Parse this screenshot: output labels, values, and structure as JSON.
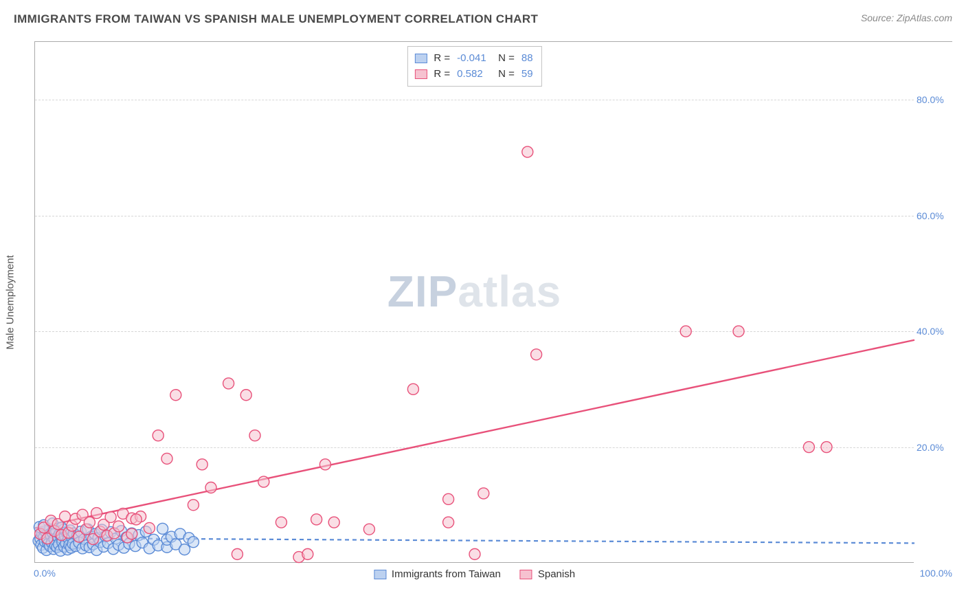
{
  "header": {
    "title": "IMMIGRANTS FROM TAIWAN VS SPANISH MALE UNEMPLOYMENT CORRELATION CHART",
    "source_label": "Source: ZipAtlas.com"
  },
  "watermark": {
    "zip": "ZIP",
    "atlas": "atlas"
  },
  "chart": {
    "type": "scatter",
    "y_axis_title": "Male Unemployment",
    "xlim": [
      0,
      100
    ],
    "ylim": [
      0,
      90
    ],
    "x_ticks": {
      "min_label": "0.0%",
      "max_label": "100.0%"
    },
    "y_ticks": [
      {
        "value": 20,
        "label": "20.0%"
      },
      {
        "value": 40,
        "label": "40.0%"
      },
      {
        "value": 60,
        "label": "60.0%"
      },
      {
        "value": 80,
        "label": "80.0%"
      }
    ],
    "grid_color": "#d6d6d6",
    "axis_color": "#aaaaaa",
    "background_color": "#ffffff",
    "tick_label_color": "#5b8bd6",
    "tick_label_fontsize": 14,
    "axis_title_fontsize": 15,
    "marker_radius": 8,
    "marker_stroke_width": 1.4,
    "series": [
      {
        "key": "taiwan",
        "label": "Immigrants from Taiwan",
        "fill": "#bcd1f0",
        "stroke": "#5b8bd6",
        "fill_opacity": 0.55,
        "R": "-0.041",
        "N": "88",
        "trend": {
          "x1": 0,
          "y1": 4.3,
          "x2": 100,
          "y2": 3.4,
          "stroke": "#5b8bd6",
          "width": 2.2,
          "dash": "6,5"
        },
        "points": [
          [
            0.4,
            3.8
          ],
          [
            0.6,
            4.2
          ],
          [
            0.7,
            3.1
          ],
          [
            0.8,
            5.1
          ],
          [
            0.9,
            2.6
          ],
          [
            1.0,
            4.4
          ],
          [
            1.1,
            3.7
          ],
          [
            1.2,
            5.4
          ],
          [
            1.3,
            2.2
          ],
          [
            1.4,
            4.0
          ],
          [
            1.5,
            3.3
          ],
          [
            1.6,
            5.8
          ],
          [
            1.7,
            2.9
          ],
          [
            1.8,
            4.7
          ],
          [
            1.9,
            3.5
          ],
          [
            2.0,
            5.2
          ],
          [
            2.1,
            2.4
          ],
          [
            2.2,
            4.1
          ],
          [
            2.3,
            3.0
          ],
          [
            2.4,
            5.5
          ],
          [
            2.5,
            2.7
          ],
          [
            2.6,
            4.5
          ],
          [
            2.7,
            3.2
          ],
          [
            2.8,
            5.0
          ],
          [
            2.9,
            2.1
          ],
          [
            3.0,
            4.3
          ],
          [
            3.1,
            3.6
          ],
          [
            3.2,
            5.7
          ],
          [
            3.3,
            2.8
          ],
          [
            3.4,
            4.6
          ],
          [
            3.5,
            3.4
          ],
          [
            3.6,
            5.3
          ],
          [
            3.7,
            2.3
          ],
          [
            3.8,
            4.2
          ],
          [
            3.9,
            3.1
          ],
          [
            4.0,
            5.6
          ],
          [
            4.1,
            2.6
          ],
          [
            4.2,
            4.4
          ],
          [
            4.3,
            3.3
          ],
          [
            4.4,
            5.1
          ],
          [
            4.6,
            2.9
          ],
          [
            4.8,
            4.7
          ],
          [
            5.0,
            3.5
          ],
          [
            5.2,
            5.4
          ],
          [
            5.4,
            2.5
          ],
          [
            5.6,
            4.1
          ],
          [
            5.8,
            3.0
          ],
          [
            6.0,
            5.8
          ],
          [
            6.2,
            2.7
          ],
          [
            6.4,
            4.5
          ],
          [
            6.6,
            3.2
          ],
          [
            6.8,
            5.0
          ],
          [
            7.0,
            2.2
          ],
          [
            7.2,
            4.3
          ],
          [
            7.4,
            3.6
          ],
          [
            7.6,
            5.7
          ],
          [
            7.8,
            2.8
          ],
          [
            8.0,
            4.6
          ],
          [
            8.3,
            3.4
          ],
          [
            8.6,
            5.3
          ],
          [
            8.9,
            2.4
          ],
          [
            9.2,
            4.2
          ],
          [
            9.5,
            3.1
          ],
          [
            9.8,
            5.5
          ],
          [
            10.1,
            2.6
          ],
          [
            10.4,
            4.4
          ],
          [
            10.7,
            3.3
          ],
          [
            11.0,
            5.1
          ],
          [
            11.4,
            2.9
          ],
          [
            11.8,
            4.8
          ],
          [
            12.2,
            3.5
          ],
          [
            12.6,
            5.4
          ],
          [
            13.0,
            2.5
          ],
          [
            13.5,
            4.0
          ],
          [
            14.0,
            3.0
          ],
          [
            14.5,
            5.9
          ],
          [
            15.0,
            2.7
          ],
          [
            15.0,
            4.0
          ],
          [
            15.5,
            4.5
          ],
          [
            16.0,
            3.2
          ],
          [
            16.5,
            5.0
          ],
          [
            17.0,
            2.3
          ],
          [
            17.5,
            4.3
          ],
          [
            18.0,
            3.6
          ],
          [
            0.5,
            6.2
          ],
          [
            1.0,
            6.5
          ],
          [
            2.0,
            6.8
          ],
          [
            3.0,
            6.1
          ]
        ]
      },
      {
        "key": "spanish",
        "label": "Spanish",
        "fill": "#f6c2d0",
        "stroke": "#e8517a",
        "fill_opacity": 0.55,
        "R": "0.582",
        "N": "59",
        "trend": {
          "x1": 0,
          "y1": 6.0,
          "x2": 100,
          "y2": 38.5,
          "stroke": "#e8517a",
          "width": 2.4,
          "dash": null
        },
        "points": [
          [
            0.6,
            5.0
          ],
          [
            1.0,
            6.1
          ],
          [
            1.4,
            4.2
          ],
          [
            1.8,
            7.3
          ],
          [
            2.2,
            5.5
          ],
          [
            2.6,
            6.7
          ],
          [
            3.0,
            4.8
          ],
          [
            3.4,
            8.0
          ],
          [
            3.8,
            5.2
          ],
          [
            4.2,
            6.4
          ],
          [
            4.6,
            7.6
          ],
          [
            5.0,
            4.5
          ],
          [
            5.4,
            8.3
          ],
          [
            5.8,
            5.8
          ],
          [
            6.2,
            7.0
          ],
          [
            6.6,
            4.1
          ],
          [
            7.0,
            8.6
          ],
          [
            7.4,
            5.4
          ],
          [
            7.8,
            6.6
          ],
          [
            8.2,
            4.7
          ],
          [
            8.6,
            7.9
          ],
          [
            9.0,
            5.1
          ],
          [
            9.5,
            6.3
          ],
          [
            10.0,
            8.5
          ],
          [
            10.5,
            4.4
          ],
          [
            11.0,
            7.7
          ],
          [
            11.0,
            5.0
          ],
          [
            12.0,
            8.0
          ],
          [
            13.0,
            6.0
          ],
          [
            14.0,
            22.0
          ],
          [
            15.0,
            18.0
          ],
          [
            16.0,
            29.0
          ],
          [
            18.0,
            10.0
          ],
          [
            19.0,
            17.0
          ],
          [
            20.0,
            13.0
          ],
          [
            22.0,
            31.0
          ],
          [
            23.0,
            1.5
          ],
          [
            24.0,
            29.0
          ],
          [
            25.0,
            22.0
          ],
          [
            26.0,
            14.0
          ],
          [
            28.0,
            7.0
          ],
          [
            30.0,
            1.0
          ],
          [
            31.0,
            1.5
          ],
          [
            32.0,
            7.5
          ],
          [
            33.0,
            17.0
          ],
          [
            34.0,
            7.0
          ],
          [
            38.0,
            5.8
          ],
          [
            43.0,
            30.0
          ],
          [
            47.0,
            7.0
          ],
          [
            47.0,
            11.0
          ],
          [
            50.0,
            1.5
          ],
          [
            51.0,
            12.0
          ],
          [
            56.0,
            71.0
          ],
          [
            57.0,
            36.0
          ],
          [
            74.0,
            40.0
          ],
          [
            80.0,
            40.0
          ],
          [
            88.0,
            20.0
          ],
          [
            90.0,
            20.0
          ],
          [
            11.5,
            7.5
          ]
        ]
      }
    ]
  },
  "stats_legend": {
    "r_label": "R =",
    "n_label": "N ="
  },
  "bottom_legend_items": [
    {
      "series_key": "taiwan"
    },
    {
      "series_key": "spanish"
    }
  ]
}
